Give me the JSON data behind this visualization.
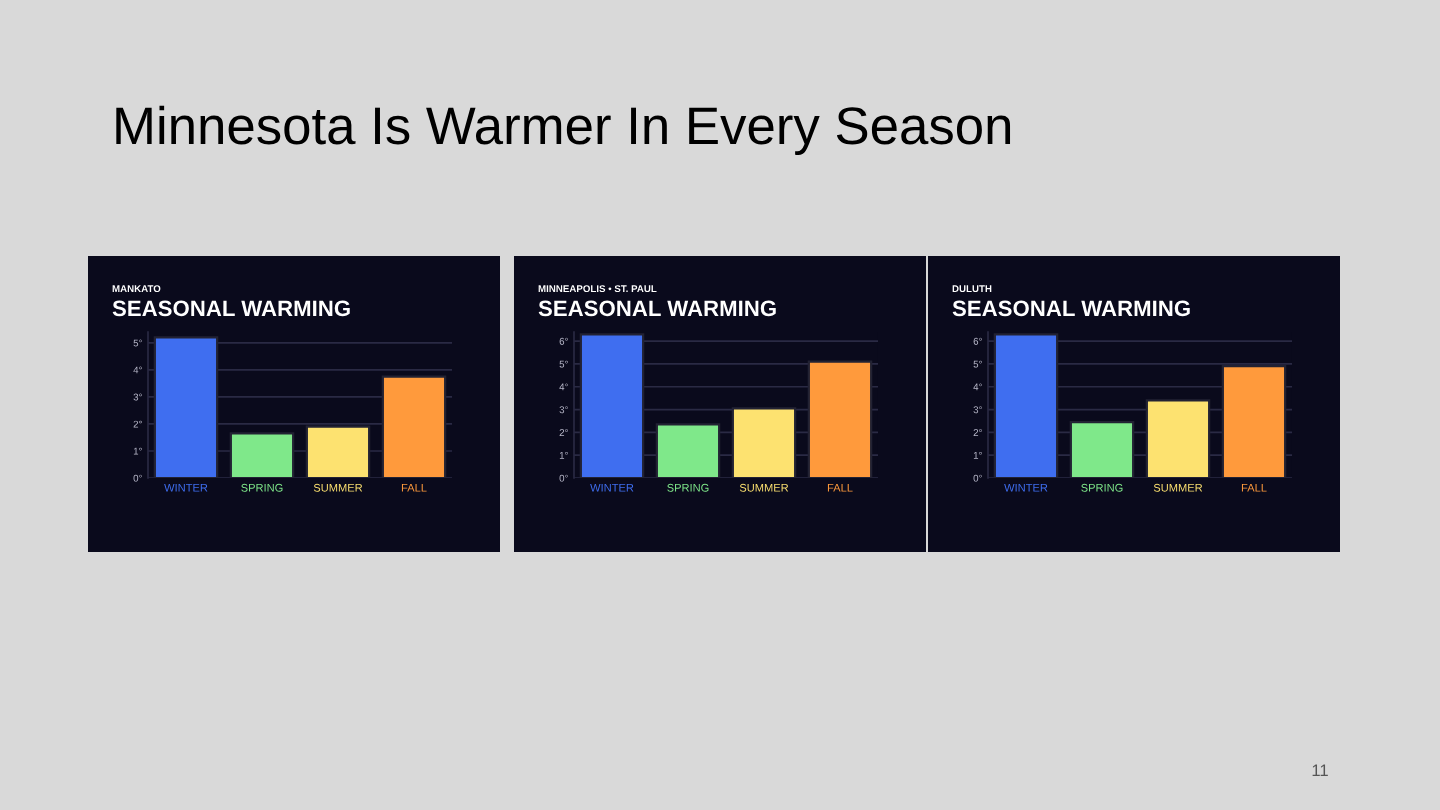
{
  "chart_data": [
    {
      "type": "bar",
      "subtitle": "MANKATO",
      "title": "SEASONAL WARMING",
      "categories": [
        "WINTER",
        "SPRING",
        "SUMMER",
        "FALL"
      ],
      "values": [
        5.2,
        1.65,
        1.9,
        3.75
      ],
      "colors": [
        "#3f6ef0",
        "#7fe88a",
        "#fde270",
        "#ff9a3c"
      ],
      "ylim": [
        0,
        5.4
      ],
      "yticks": [
        {
          "value": 0,
          "label": "0°"
        },
        {
          "value": 1,
          "label": "1°"
        },
        {
          "value": 2,
          "label": "2°"
        },
        {
          "value": 3,
          "label": "3°"
        },
        {
          "value": 4,
          "label": "4°"
        },
        {
          "value": 5,
          "label": "5°"
        }
      ],
      "grid": "y",
      "annotations": [
        "Minnesota Is Warmer In Every Season",
        "11"
      ]
    },
    {
      "type": "bar",
      "subtitle": "MINNEAPOLIS • ST. PAUL",
      "title": "SEASONAL WARMING",
      "categories": [
        "WINTER",
        "SPRING",
        "SUMMER",
        "FALL"
      ],
      "values": [
        6.3,
        2.35,
        3.05,
        5.1
      ],
      "colors": [
        "#3f6ef0",
        "#7fe88a",
        "#fde270",
        "#ff9a3c"
      ],
      "ylim": [
        0,
        6.4
      ],
      "yticks": [
        {
          "value": 0,
          "label": "0°"
        },
        {
          "value": 1,
          "label": "1°"
        },
        {
          "value": 2,
          "label": "2°"
        },
        {
          "value": 3,
          "label": "3°"
        },
        {
          "value": 4,
          "label": "4°"
        },
        {
          "value": 5,
          "label": "5°"
        },
        {
          "value": 6,
          "label": "6°"
        }
      ],
      "grid": "y"
    },
    {
      "type": "bar",
      "subtitle": "DULUTH",
      "title": "SEASONAL WARMING",
      "categories": [
        "WINTER",
        "SPRING",
        "SUMMER",
        "FALL"
      ],
      "values": [
        6.3,
        2.45,
        3.4,
        4.9
      ],
      "colors": [
        "#3f6ef0",
        "#7fe88a",
        "#fde270",
        "#ff9a3c"
      ],
      "ylim": [
        0,
        6.4
      ],
      "yticks": [
        {
          "value": 0,
          "label": "0°"
        },
        {
          "value": 1,
          "label": "1°"
        },
        {
          "value": 2,
          "label": "2°"
        },
        {
          "value": 3,
          "label": "3°"
        },
        {
          "value": 4,
          "label": "4°"
        },
        {
          "value": 5,
          "label": "5°"
        },
        {
          "value": 6,
          "label": "6°"
        }
      ],
      "grid": "y"
    }
  ]
}
